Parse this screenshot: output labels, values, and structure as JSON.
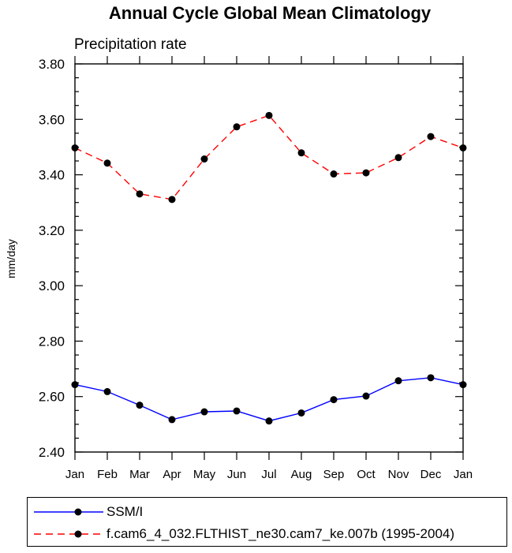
{
  "chart_data": {
    "type": "line",
    "title": "Annual Cycle Global Mean Climatology",
    "subtitle": "Precipitation rate",
    "xlabel": "",
    "ylabel": "mm/day",
    "categories": [
      "Jan",
      "Feb",
      "Mar",
      "Apr",
      "May",
      "Jun",
      "Jul",
      "Aug",
      "Sep",
      "Oct",
      "Nov",
      "Dec",
      "Jan"
    ],
    "ylim": [
      2.4,
      3.8
    ],
    "yticks": [
      "2.40",
      "2.60",
      "2.80",
      "3.00",
      "3.20",
      "3.40",
      "3.60",
      "3.80"
    ],
    "grid": false,
    "legend_position": "bottom",
    "series": [
      {
        "name": "SSM/I",
        "color": "#0000ff",
        "dash": "solid",
        "marker": "circle",
        "values": [
          2.643,
          2.618,
          2.569,
          2.517,
          2.545,
          2.548,
          2.512,
          2.541,
          2.589,
          2.602,
          2.657,
          2.668,
          2.643
        ]
      },
      {
        "name": "f.cam6_4_032.FLTHIST_ne30.cam7_ke.007b (1995-2004)",
        "color": "#ff0000",
        "dash": "dashed",
        "marker": "circle",
        "values": [
          3.497,
          3.442,
          3.331,
          3.311,
          3.457,
          3.573,
          3.614,
          3.479,
          3.403,
          3.407,
          3.462,
          3.538,
          3.497
        ]
      }
    ]
  }
}
